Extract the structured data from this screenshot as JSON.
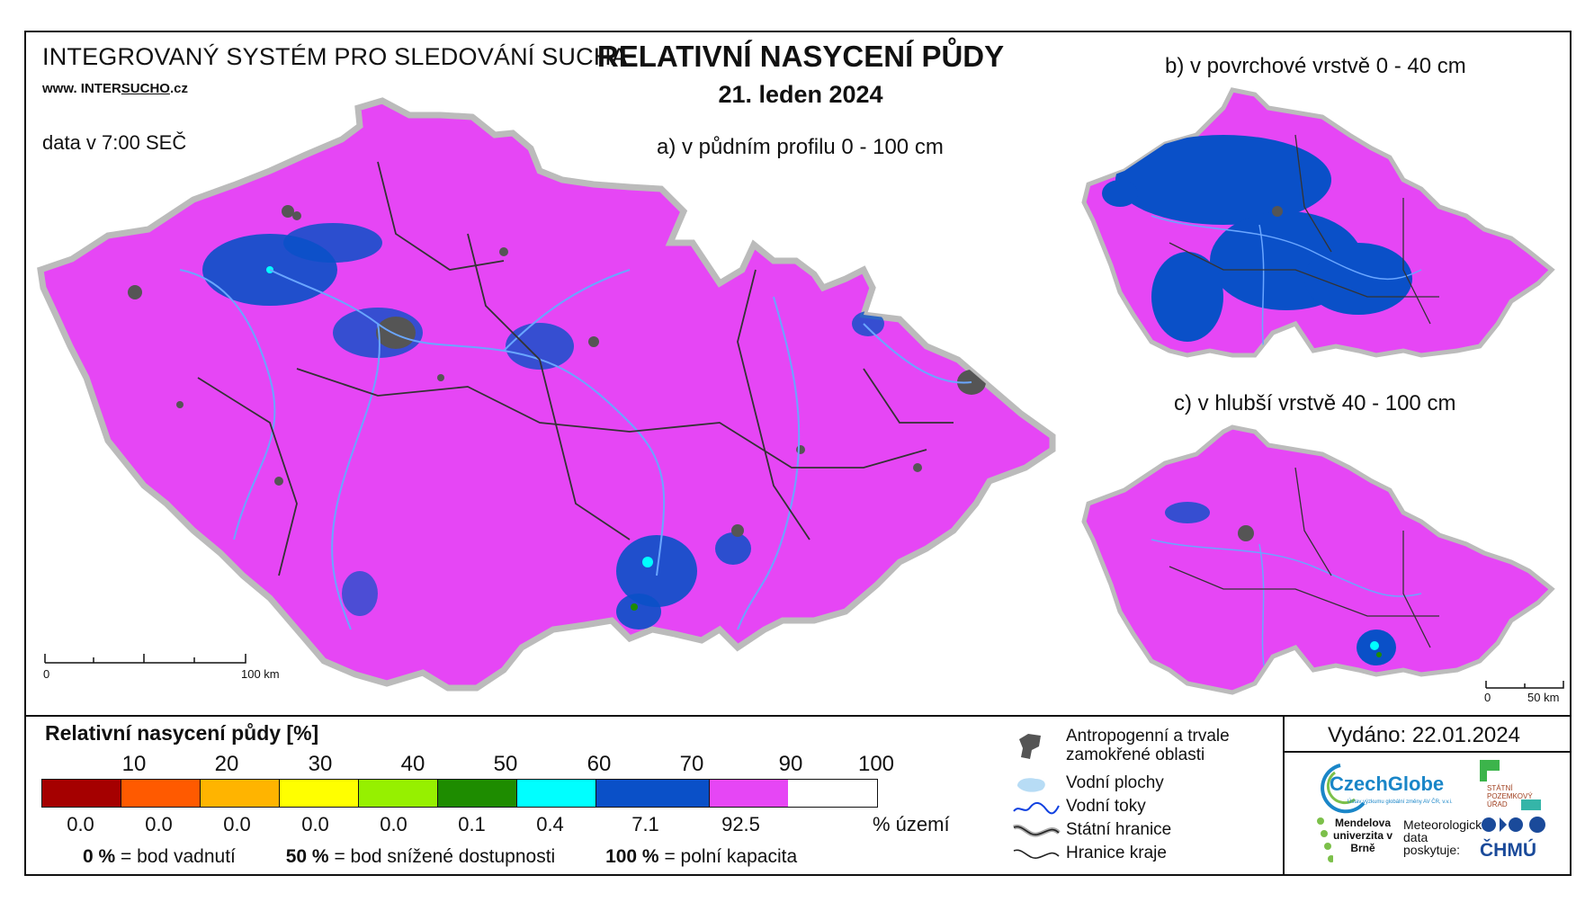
{
  "header": {
    "system_title": "INTEGROVANÝ SYSTÉM PRO SLEDOVÁNÍ SUCHA",
    "website_prefix": "www. INTER",
    "website_highlight": "SUCHO",
    "website_suffix": ".cz",
    "data_time": "data v 7:00 SEČ",
    "main_title": "RELATIVNÍ NASYCENÍ PŮDY",
    "date": "21. leden 2024"
  },
  "maps": {
    "a_label": "a) v půdním profilu 0 - 100 cm",
    "b_label": "b) v povrchové vrstvě 0 - 40 cm",
    "c_label": "c) v hlubší vrstvě 40 - 100 cm",
    "scale_a": {
      "zero": "0",
      "end": "100 km"
    },
    "scale_c": {
      "zero": "0",
      "end": "50 km"
    }
  },
  "legend": {
    "title": "Relativní nasycení půdy [%]",
    "ticks": [
      "10",
      "20",
      "30",
      "40",
      "50",
      "60",
      "70",
      "90",
      "100"
    ],
    "classes": [
      {
        "color": "#a50000",
        "pct": "0.0"
      },
      {
        "color": "#ff5a00",
        "pct": "0.0"
      },
      {
        "color": "#ffb400",
        "pct": "0.0"
      },
      {
        "color": "#ffff00",
        "pct": "0.0"
      },
      {
        "color": "#96f000",
        "pct": "0.0"
      },
      {
        "color": "#1e8c00",
        "pct": "0.1"
      },
      {
        "color": "#00ffff",
        "pct": "0.4"
      },
      {
        "color": "#0a50c8",
        "pct": "7.1"
      },
      {
        "color": "#e646f5",
        "pct": "92.5"
      }
    ],
    "pct_unit": "% území",
    "definitions": [
      {
        "value": "0 %",
        "text": "= bod vadnutí"
      },
      {
        "value": "50 %",
        "text": "= bod snížené dostupnosti"
      },
      {
        "value": "100 %",
        "text": "= polní kapacita"
      }
    ]
  },
  "symbols": {
    "anthropogenic": "Antropogenní a trvale zamokřené oblasti",
    "water_bodies": "Vodní plochy",
    "water_courses": "Vodní toky",
    "state_border": "Státní hranice",
    "region_border": "Hranice kraje"
  },
  "issued": "Vydáno: 22.01.2024",
  "logos": {
    "czechglobe": "CzechGlobe",
    "czechglobe_sub": "Ústav výzkumu globální změny AV ČR, v.v.i.",
    "spu": "STÁTNÍ POZEMKOVÝ ÚŘAD",
    "mendel": "Mendelova univerzita v Brně",
    "chmu_note": "Meteorologická data poskytuje:",
    "chmu": "ČHMÚ"
  },
  "colors": {
    "magenta": "#e646f5",
    "blue": "#0a50c8",
    "river": "#6aa6ff",
    "urban": "#555555",
    "border": "#222222"
  }
}
